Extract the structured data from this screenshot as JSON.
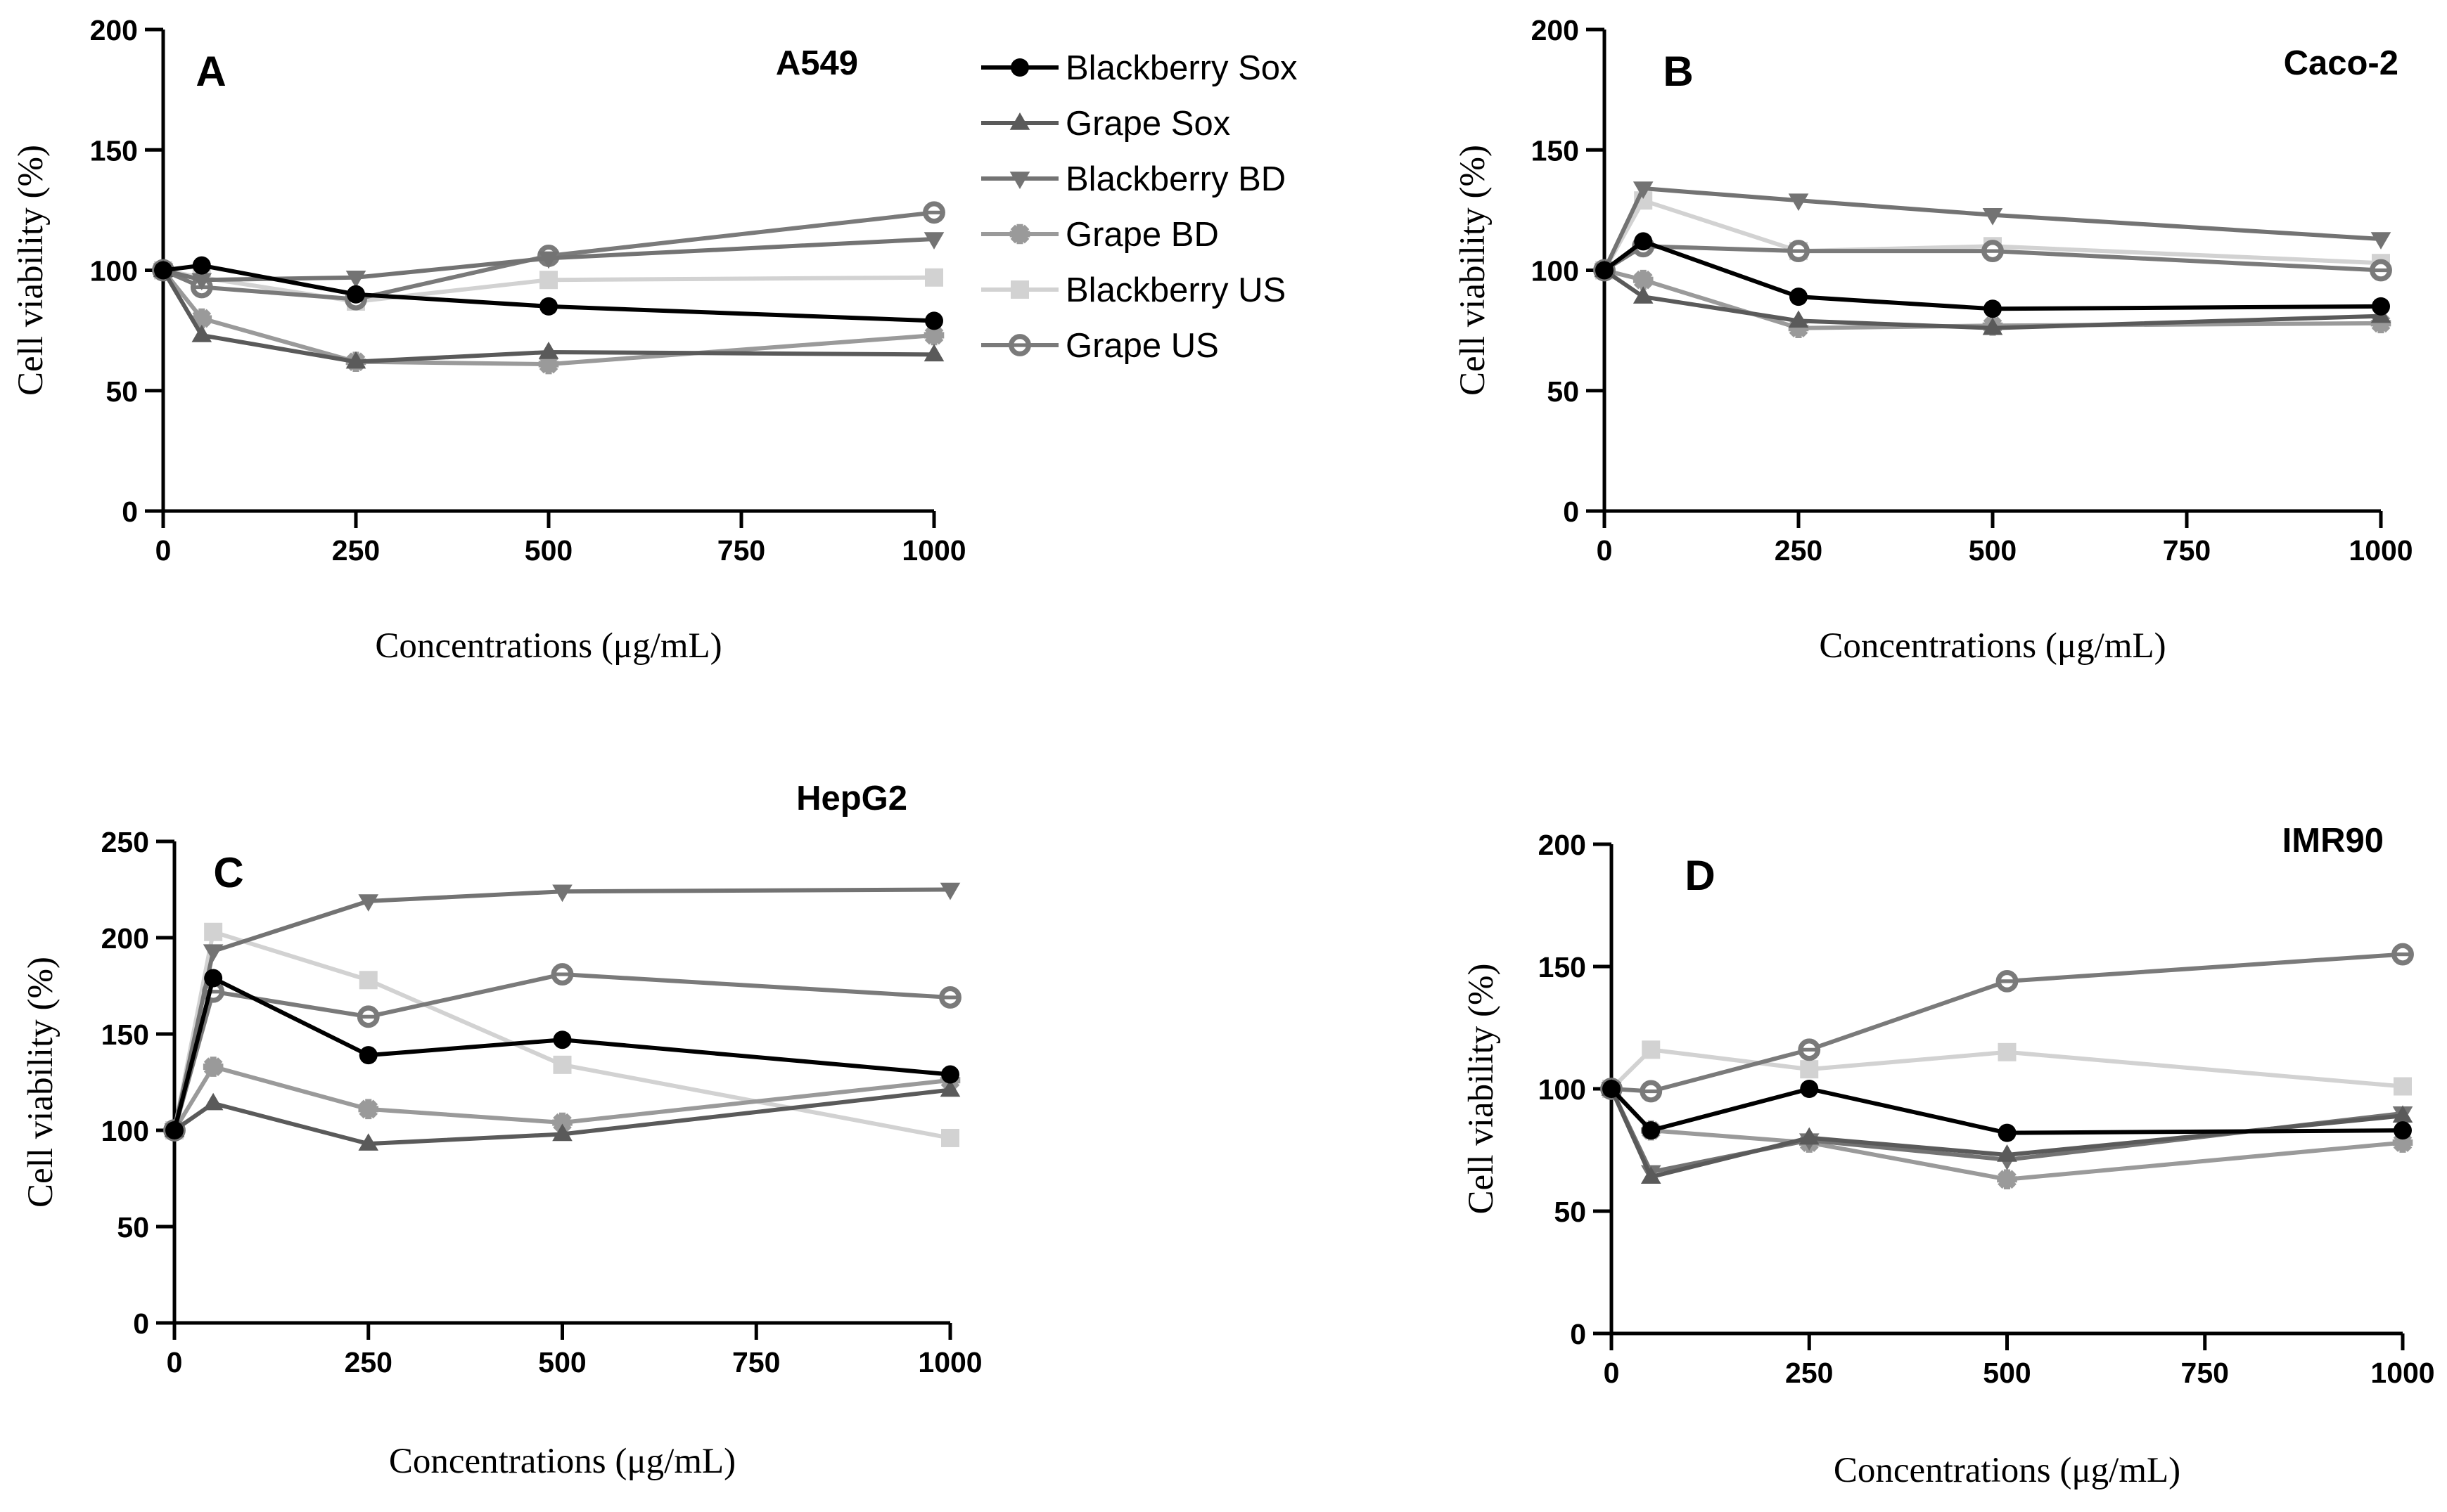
{
  "legend": {
    "items": [
      {
        "name": "Blackberry Sox",
        "color": "#000000",
        "marker": "circle"
      },
      {
        "name": "Grape Sox",
        "color": "#5a5a5a",
        "marker": "triangle-up"
      },
      {
        "name": "Blackberry BD",
        "color": "#737373",
        "marker": "triangle-down"
      },
      {
        "name": "Grape BD",
        "color": "#9a9a9a",
        "marker": "star"
      },
      {
        "name": "Blackberry US",
        "color": "#d2d2d2",
        "marker": "square"
      },
      {
        "name": "Grape US",
        "color": "#7a7a7a",
        "marker": "circle-cross"
      }
    ]
  },
  "chart_data": [
    {
      "type": "line",
      "panel": "A",
      "title": "A549",
      "xlabel": "Concentrations (μg/mL)",
      "ylabel": "Cell viability (%)",
      "x": [
        0,
        50,
        250,
        500,
        1000
      ],
      "xticks": [
        0,
        250,
        500,
        750,
        1000
      ],
      "xlim": [
        0,
        1000
      ],
      "yticks": [
        0,
        50,
        100,
        150,
        200
      ],
      "ylim": [
        0,
        200
      ],
      "series": [
        {
          "name": "Blackberry Sox",
          "values": [
            100,
            102,
            90,
            85,
            79
          ]
        },
        {
          "name": "Grape Sox",
          "values": [
            100,
            73,
            62,
            66,
            65
          ]
        },
        {
          "name": "Blackberry BD",
          "values": [
            100,
            96,
            97,
            105,
            113
          ]
        },
        {
          "name": "Grape BD",
          "values": [
            100,
            80,
            62,
            61,
            73
          ]
        },
        {
          "name": "Blackberry US",
          "values": [
            100,
            97,
            87,
            96,
            97
          ]
        },
        {
          "name": "Grape US",
          "values": [
            100,
            93,
            88,
            106,
            124
          ]
        }
      ]
    },
    {
      "type": "line",
      "panel": "B",
      "title": "Caco-2",
      "xlabel": "Concentrations (μg/mL)",
      "ylabel": "Cell viability (%)",
      "x": [
        0,
        50,
        250,
        500,
        1000
      ],
      "xticks": [
        0,
        250,
        500,
        750,
        1000
      ],
      "xlim": [
        0,
        1000
      ],
      "yticks": [
        0,
        50,
        100,
        150,
        200
      ],
      "ylim": [
        0,
        200
      ],
      "series": [
        {
          "name": "Blackberry Sox",
          "values": [
            100,
            112,
            89,
            84,
            85
          ]
        },
        {
          "name": "Grape Sox",
          "values": [
            100,
            89,
            79,
            76,
            81
          ]
        },
        {
          "name": "Blackberry BD",
          "values": [
            100,
            134,
            129,
            123,
            113
          ]
        },
        {
          "name": "Grape BD",
          "values": [
            100,
            96,
            76,
            77,
            78
          ]
        },
        {
          "name": "Blackberry US",
          "values": [
            100,
            129,
            108,
            110,
            103
          ]
        },
        {
          "name": "Grape US",
          "values": [
            100,
            110,
            108,
            108,
            100
          ]
        }
      ]
    },
    {
      "type": "line",
      "panel": "C",
      "title": "HepG2",
      "xlabel": "Concentrations (μg/mL)",
      "ylabel": "Cell viability (%)",
      "x": [
        0,
        50,
        250,
        500,
        1000
      ],
      "xticks": [
        0,
        250,
        500,
        750,
        1000
      ],
      "xlim": [
        0,
        1000
      ],
      "yticks": [
        0,
        50,
        100,
        150,
        200,
        250
      ],
      "ylim": [
        0,
        250
      ],
      "series": [
        {
          "name": "Blackberry Sox",
          "values": [
            100,
            179,
            139,
            147,
            129
          ]
        },
        {
          "name": "Grape Sox",
          "values": [
            100,
            114,
            93,
            98,
            121
          ]
        },
        {
          "name": "Blackberry BD",
          "values": [
            100,
            193,
            219,
            224,
            225
          ]
        },
        {
          "name": "Grape BD",
          "values": [
            100,
            133,
            111,
            104,
            126
          ]
        },
        {
          "name": "Blackberry US",
          "values": [
            100,
            203,
            178,
            134,
            96
          ]
        },
        {
          "name": "Grape US",
          "values": [
            100,
            172,
            159,
            181,
            169
          ]
        }
      ]
    },
    {
      "type": "line",
      "panel": "D",
      "title": "IMR90",
      "xlabel": "Concentrations (μg/mL)",
      "ylabel": "Cell viability (%)",
      "x": [
        0,
        50,
        250,
        500,
        1000
      ],
      "xticks": [
        0,
        250,
        500,
        750,
        1000
      ],
      "xlim": [
        0,
        1000
      ],
      "yticks": [
        0,
        50,
        100,
        150,
        200
      ],
      "ylim": [
        0,
        200
      ],
      "series": [
        {
          "name": "Blackberry Sox",
          "values": [
            100,
            83,
            100,
            82,
            83
          ]
        },
        {
          "name": "Grape Sox",
          "values": [
            100,
            64,
            80,
            73,
            89
          ]
        },
        {
          "name": "Blackberry BD",
          "values": [
            100,
            66,
            79,
            71,
            90
          ]
        },
        {
          "name": "Grape BD",
          "values": [
            100,
            83,
            78,
            63,
            78
          ]
        },
        {
          "name": "Blackberry US",
          "values": [
            100,
            116,
            108,
            115,
            101
          ]
        },
        {
          "name": "Grape US",
          "values": [
            100,
            99,
            116,
            144,
            155
          ]
        }
      ]
    }
  ]
}
